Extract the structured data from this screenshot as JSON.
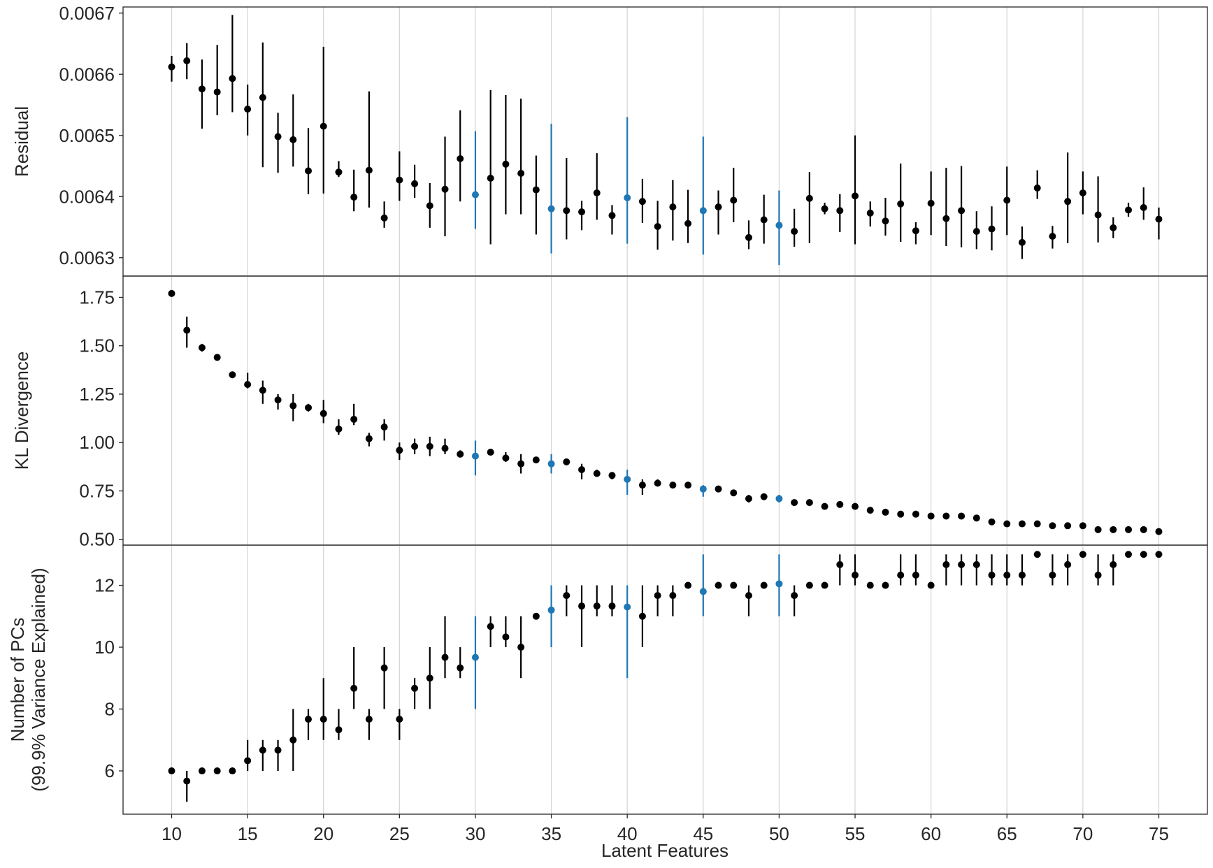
{
  "chart_data": {
    "type": "scatter",
    "xlabel": "Latent Features",
    "x_ticks": [
      10,
      15,
      20,
      25,
      30,
      35,
      40,
      45,
      50,
      55,
      60,
      65,
      70,
      75
    ],
    "xlim": [
      6.8,
      78.2
    ],
    "grid": "vertical",
    "highlight_color": "#1f77b4",
    "default_color": "#000000",
    "highlight_x": [
      30,
      35,
      40,
      45,
      50
    ],
    "x": [
      10,
      11,
      12,
      13,
      14,
      15,
      16,
      17,
      18,
      19,
      20,
      21,
      22,
      23,
      24,
      25,
      26,
      27,
      28,
      29,
      30,
      31,
      32,
      33,
      34,
      35,
      36,
      37,
      38,
      39,
      40,
      41,
      42,
      43,
      44,
      45,
      46,
      47,
      48,
      49,
      50,
      51,
      52,
      53,
      54,
      55,
      56,
      57,
      58,
      59,
      60,
      61,
      62,
      63,
      64,
      65,
      66,
      67,
      68,
      69,
      70,
      71,
      72,
      73,
      74,
      75
    ],
    "panels": [
      {
        "ylabel": "Residual",
        "ylim": [
          0.00627,
          0.00671
        ],
        "y_ticks": [
          0.0063,
          0.0064,
          0.0065,
          0.0066,
          0.0067
        ],
        "y_tick_labels": [
          "0.0063",
          "0.0064",
          "0.0065",
          "0.0066",
          "0.0067"
        ],
        "y": [
          0.006612,
          0.006622,
          0.006576,
          0.006571,
          0.006593,
          0.006543,
          0.006562,
          0.006498,
          0.006493,
          0.006442,
          0.006515,
          0.00644,
          0.006399,
          0.006443,
          0.006365,
          0.006427,
          0.006421,
          0.006385,
          0.006412,
          0.006462,
          0.006403,
          0.00643,
          0.006453,
          0.006438,
          0.006411,
          0.00638,
          0.006377,
          0.006375,
          0.006406,
          0.006369,
          0.006398,
          0.006392,
          0.006351,
          0.006383,
          0.006356,
          0.006377,
          0.006383,
          0.006394,
          0.006333,
          0.006362,
          0.006353,
          0.006343,
          0.006397,
          0.00638,
          0.006377,
          0.006401,
          0.006373,
          0.00636,
          0.006388,
          0.006344,
          0.006389,
          0.006364,
          0.006377,
          0.006343,
          0.006347,
          0.006394,
          0.006325,
          0.006414,
          0.006335,
          0.006392,
          0.006406,
          0.00637,
          0.006349,
          0.006378,
          0.006382,
          0.006363
        ],
        "lo": [
          0.006588,
          0.006592,
          0.006511,
          0.006533,
          0.006538,
          0.0065,
          0.006448,
          0.006439,
          0.006449,
          0.006404,
          0.006405,
          0.006432,
          0.006376,
          0.006382,
          0.006349,
          0.006393,
          0.006398,
          0.006349,
          0.006335,
          0.006392,
          0.006347,
          0.006322,
          0.006371,
          0.006371,
          0.006338,
          0.006307,
          0.00633,
          0.006345,
          0.006362,
          0.006338,
          0.006323,
          0.006357,
          0.006313,
          0.006328,
          0.006324,
          0.006305,
          0.006338,
          0.006358,
          0.006314,
          0.006323,
          0.006288,
          0.006318,
          0.006324,
          0.006371,
          0.006342,
          0.006322,
          0.006351,
          0.006336,
          0.006326,
          0.006322,
          0.006337,
          0.006319,
          0.006317,
          0.006314,
          0.006312,
          0.006337,
          0.006298,
          0.006396,
          0.006315,
          0.006324,
          0.006371,
          0.006325,
          0.006332,
          0.006367,
          0.006362,
          0.00633
        ],
        "hi": [
          0.00663,
          0.006651,
          0.006624,
          0.006648,
          0.006697,
          0.006583,
          0.006652,
          0.006537,
          0.006567,
          0.006512,
          0.006645,
          0.006458,
          0.006444,
          0.006572,
          0.006392,
          0.006474,
          0.006452,
          0.006422,
          0.006498,
          0.006541,
          0.006507,
          0.006574,
          0.006566,
          0.00656,
          0.006467,
          0.006519,
          0.006463,
          0.006393,
          0.006471,
          0.006386,
          0.00653,
          0.006429,
          0.006393,
          0.006427,
          0.006411,
          0.006498,
          0.00641,
          0.006447,
          0.006361,
          0.006403,
          0.00641,
          0.00638,
          0.00644,
          0.00639,
          0.006404,
          0.0065,
          0.006392,
          0.006398,
          0.006454,
          0.006358,
          0.006441,
          0.006447,
          0.00645,
          0.006376,
          0.006384,
          0.006449,
          0.006351,
          0.006443,
          0.006352,
          0.006472,
          0.006441,
          0.006433,
          0.006366,
          0.00639,
          0.006415,
          0.006382
        ]
      },
      {
        "ylabel": "KL Divergence",
        "ylim": [
          0.47,
          1.86
        ],
        "y_ticks": [
          0.5,
          0.75,
          1.0,
          1.25,
          1.5,
          1.75
        ],
        "y_tick_labels": [
          "0.50",
          "0.75",
          "1.00",
          "1.25",
          "1.50",
          "1.75"
        ],
        "y": [
          1.77,
          1.58,
          1.49,
          1.44,
          1.35,
          1.3,
          1.27,
          1.22,
          1.19,
          1.18,
          1.15,
          1.07,
          1.12,
          1.02,
          1.08,
          0.96,
          0.98,
          0.98,
          0.97,
          0.94,
          0.93,
          0.95,
          0.92,
          0.89,
          0.91,
          0.89,
          0.9,
          0.86,
          0.84,
          0.83,
          0.81,
          0.78,
          0.79,
          0.78,
          0.78,
          0.76,
          0.76,
          0.74,
          0.71,
          0.72,
          0.71,
          0.69,
          0.69,
          0.67,
          0.68,
          0.67,
          0.65,
          0.64,
          0.63,
          0.63,
          0.62,
          0.62,
          0.62,
          0.61,
          0.59,
          0.58,
          0.58,
          0.58,
          0.57,
          0.57,
          0.57,
          0.55,
          0.55,
          0.55,
          0.55,
          0.54
        ],
        "lo": [
          1.77,
          1.49,
          1.47,
          1.43,
          1.34,
          1.28,
          1.2,
          1.17,
          1.11,
          1.16,
          1.1,
          1.04,
          1.09,
          0.98,
          1.01,
          0.91,
          0.94,
          0.93,
          0.94,
          0.93,
          0.83,
          0.94,
          0.9,
          0.84,
          0.9,
          0.84,
          0.89,
          0.81,
          0.83,
          0.81,
          0.73,
          0.73,
          0.78,
          0.77,
          0.77,
          0.72,
          0.75,
          0.73,
          0.69,
          0.71,
          0.69,
          0.68,
          0.68,
          0.67,
          0.67,
          0.66,
          0.64,
          0.63,
          0.62,
          0.62,
          0.61,
          0.61,
          0.61,
          0.6,
          0.59,
          0.58,
          0.57,
          0.57,
          0.56,
          0.56,
          0.56,
          0.54,
          0.54,
          0.54,
          0.54,
          0.53
        ],
        "hi": [
          1.78,
          1.65,
          1.51,
          1.45,
          1.36,
          1.36,
          1.32,
          1.25,
          1.25,
          1.2,
          1.22,
          1.12,
          1.2,
          1.05,
          1.12,
          1.0,
          1.02,
          1.03,
          1.02,
          0.96,
          1.01,
          0.96,
          0.95,
          0.94,
          0.92,
          0.94,
          0.91,
          0.89,
          0.86,
          0.84,
          0.86,
          0.81,
          0.81,
          0.79,
          0.79,
          0.78,
          0.77,
          0.75,
          0.73,
          0.73,
          0.73,
          0.7,
          0.7,
          0.68,
          0.69,
          0.68,
          0.66,
          0.65,
          0.64,
          0.64,
          0.63,
          0.63,
          0.63,
          0.62,
          0.6,
          0.59,
          0.59,
          0.59,
          0.58,
          0.58,
          0.58,
          0.56,
          0.56,
          0.56,
          0.56,
          0.55
        ]
      },
      {
        "ylabel": "Number of PCs\n(99.9% Variance Explained)",
        "ylim": [
          4.6,
          13.3
        ],
        "y_ticks": [
          6,
          8,
          10,
          12
        ],
        "y_tick_labels": [
          "6",
          "8",
          "10",
          "12"
        ],
        "y": [
          6.0,
          5.67,
          6.0,
          6.0,
          6.0,
          6.33,
          6.67,
          6.67,
          7.0,
          7.67,
          7.67,
          7.33,
          8.67,
          7.67,
          9.33,
          7.67,
          8.67,
          9.0,
          9.67,
          9.33,
          9.67,
          10.67,
          10.33,
          10.0,
          11.0,
          11.2,
          11.67,
          11.33,
          11.33,
          11.33,
          11.3,
          11.0,
          11.67,
          11.67,
          12.0,
          11.8,
          12.0,
          12.0,
          11.67,
          12.0,
          12.05,
          11.67,
          12.0,
          12.0,
          12.67,
          12.33,
          12.0,
          12.0,
          12.33,
          12.33,
          12.0,
          12.67,
          12.67,
          12.67,
          12.33,
          12.33,
          12.33,
          13.0,
          12.33,
          12.67,
          13.0,
          12.33,
          12.67,
          13.0,
          13.0,
          13.0
        ],
        "lo": [
          6.0,
          5.0,
          6.0,
          6.0,
          6.0,
          6.0,
          6.0,
          6.0,
          6.0,
          7.0,
          7.0,
          7.0,
          8.0,
          7.0,
          8.0,
          7.0,
          8.0,
          8.0,
          9.0,
          9.0,
          8.0,
          10.0,
          10.0,
          9.0,
          11.0,
          10.0,
          11.0,
          10.0,
          11.0,
          11.0,
          9.0,
          10.0,
          11.0,
          11.0,
          12.0,
          11.0,
          12.0,
          12.0,
          11.0,
          12.0,
          11.0,
          11.0,
          12.0,
          12.0,
          12.0,
          12.0,
          12.0,
          12.0,
          12.0,
          12.0,
          12.0,
          12.0,
          12.0,
          12.0,
          12.0,
          12.0,
          12.0,
          13.0,
          12.0,
          12.0,
          13.0,
          12.0,
          12.0,
          13.0,
          13.0,
          13.0
        ],
        "hi": [
          6.0,
          6.0,
          6.0,
          6.0,
          6.0,
          7.0,
          7.0,
          7.0,
          8.0,
          8.0,
          9.0,
          8.0,
          10.0,
          8.0,
          10.0,
          8.0,
          9.0,
          10.0,
          11.0,
          10.0,
          11.0,
          11.0,
          11.0,
          11.0,
          11.0,
          12.0,
          12.0,
          12.0,
          12.0,
          12.0,
          12.0,
          12.0,
          12.0,
          12.0,
          12.0,
          13.0,
          12.0,
          12.0,
          12.0,
          12.0,
          13.0,
          12.0,
          12.0,
          12.0,
          13.0,
          13.0,
          12.0,
          12.0,
          13.0,
          13.0,
          12.0,
          13.0,
          13.0,
          13.0,
          13.0,
          13.0,
          13.0,
          13.0,
          13.0,
          13.0,
          13.0,
          13.0,
          13.0,
          13.0,
          13.0,
          13.0
        ]
      }
    ]
  }
}
